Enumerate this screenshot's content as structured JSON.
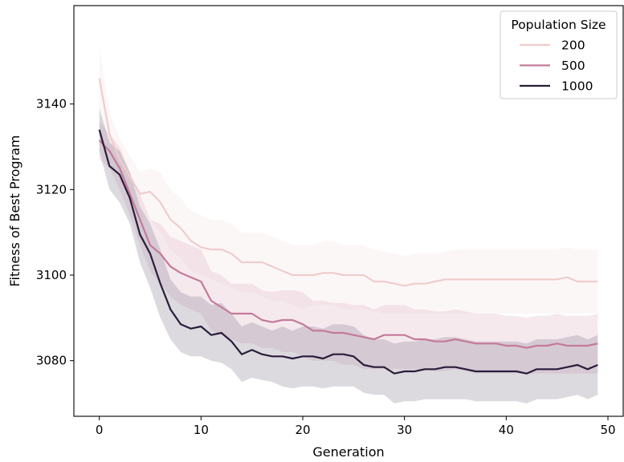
{
  "chart_data": {
    "type": "line",
    "xlabel": "Generation",
    "ylabel": "Fitness of Best Program",
    "xlim": [
      -2.5,
      51.5
    ],
    "ylim": [
      3067,
      3163
    ],
    "xticks": [
      0,
      10,
      20,
      30,
      40,
      50
    ],
    "yticks": [
      3080,
      3100,
      3120,
      3140
    ],
    "grid": false,
    "legend": {
      "title": "Population Size",
      "placement": "top-right"
    },
    "series": [
      {
        "name": "200",
        "color": "#f0cccc",
        "band_color": "#f5dede",
        "band_opacity": 0.25,
        "x": [
          0,
          1,
          2,
          3,
          4,
          5,
          6,
          7,
          8,
          9,
          10,
          11,
          12,
          13,
          14,
          15,
          16,
          17,
          18,
          19,
          20,
          21,
          22,
          23,
          24,
          25,
          26,
          27,
          28,
          29,
          30,
          31,
          32,
          33,
          34,
          35,
          36,
          37,
          38,
          39,
          40,
          41,
          42,
          43,
          44,
          45,
          46,
          47,
          48,
          49
        ],
        "values": [
          3146,
          3133,
          3127,
          3123,
          3119,
          3119.5,
          3117,
          3113,
          3111,
          3108,
          3106.5,
          3106,
          3106,
          3105,
          3103,
          3103,
          3103,
          3102,
          3101,
          3100,
          3100,
          3100,
          3100.5,
          3100.5,
          3100,
          3100,
          3100,
          3098.5,
          3098.5,
          3098,
          3097.5,
          3098,
          3098,
          3098.5,
          3099,
          3099,
          3099,
          3099,
          3099,
          3099,
          3099,
          3099,
          3099,
          3099,
          3099,
          3099,
          3099.5,
          3098.5,
          3098.5,
          3098.5
        ],
        "lower": [
          3138,
          3127,
          3122,
          3118,
          3114,
          3113,
          3110,
          3106,
          3104,
          3101,
          3100,
          3099,
          3098,
          3097,
          3096,
          3096,
          3095,
          3094,
          3094,
          3093,
          3092,
          3093,
          3093,
          3093,
          3092,
          3092,
          3092,
          3091.5,
          3091,
          3091,
          3091,
          3091,
          3091,
          3091,
          3091,
          3091,
          3091,
          3091,
          3091,
          3091,
          3091,
          3091,
          3091,
          3091,
          3091,
          3091,
          3091,
          3091,
          3091,
          3091
        ],
        "upper": [
          3153,
          3138,
          3132,
          3128,
          3124,
          3125,
          3124,
          3120,
          3118,
          3115,
          3114,
          3113,
          3113,
          3112,
          3110,
          3110,
          3110,
          3109,
          3108,
          3107,
          3107,
          3107,
          3108,
          3108,
          3107,
          3107,
          3107,
          3106,
          3105.5,
          3105,
          3104.5,
          3105,
          3105,
          3105,
          3105.5,
          3106,
          3106,
          3106,
          3106,
          3106,
          3106,
          3106,
          3106,
          3106,
          3106,
          3106,
          3106.5,
          3106,
          3106,
          3106
        ]
      },
      {
        "name": "500",
        "color": "#c47a99",
        "band_color": "#d8a7ba",
        "band_opacity": 0.25,
        "x": [
          0,
          1,
          2,
          3,
          4,
          5,
          6,
          7,
          8,
          9,
          10,
          11,
          12,
          13,
          14,
          15,
          16,
          17,
          18,
          19,
          20,
          21,
          22,
          23,
          24,
          25,
          26,
          27,
          28,
          29,
          30,
          31,
          32,
          33,
          34,
          35,
          36,
          37,
          38,
          39,
          40,
          41,
          42,
          43,
          44,
          45,
          46,
          47,
          48,
          49
        ],
        "values": [
          3131.5,
          3129,
          3125,
          3119,
          3113,
          3107,
          3105,
          3102,
          3100.5,
          3099.5,
          3098.5,
          3094,
          3092.5,
          3091,
          3091,
          3091,
          3089.5,
          3089,
          3089.5,
          3089.5,
          3088.5,
          3087,
          3087,
          3086.5,
          3086.5,
          3086,
          3085.5,
          3085,
          3086,
          3086,
          3086,
          3085,
          3085,
          3084.5,
          3084.5,
          3085,
          3084.5,
          3084,
          3084,
          3084,
          3083.5,
          3083.5,
          3083,
          3083.5,
          3083.5,
          3084,
          3083.5,
          3083.5,
          3083.5,
          3084
        ],
        "lower": [
          3127,
          3125,
          3120,
          3114,
          3107,
          3101,
          3098,
          3095,
          3093,
          3092,
          3091,
          3087,
          3086,
          3085,
          3084,
          3084,
          3083,
          3083,
          3082,
          3082,
          3081,
          3080,
          3080,
          3080,
          3079,
          3079,
          3078,
          3078,
          3078,
          3078,
          3078,
          3078,
          3078,
          3077.5,
          3077.5,
          3078,
          3077.5,
          3077,
          3077,
          3077,
          3077,
          3077,
          3077,
          3077,
          3077,
          3077,
          3077,
          3077,
          3077,
          3077
        ],
        "upper": [
          3136,
          3133,
          3130,
          3124,
          3119,
          3113,
          3112,
          3109,
          3108,
          3107,
          3106,
          3101,
          3100,
          3098,
          3098,
          3098,
          3096.5,
          3096,
          3096.5,
          3096.5,
          3096,
          3094,
          3094,
          3093.5,
          3093.5,
          3093,
          3093,
          3092,
          3093,
          3093,
          3093,
          3092,
          3092,
          3091.5,
          3091.5,
          3092,
          3091.5,
          3091,
          3091,
          3091,
          3090.5,
          3090.5,
          3090,
          3090.5,
          3090.5,
          3091,
          3090.5,
          3090.5,
          3090.5,
          3091
        ]
      },
      {
        "name": "1000",
        "color": "#2a1c3a",
        "band_color": "#8a8595",
        "band_opacity": 0.3,
        "x": [
          0,
          1,
          2,
          3,
          4,
          5,
          6,
          7,
          8,
          9,
          10,
          11,
          12,
          13,
          14,
          15,
          16,
          17,
          18,
          19,
          20,
          21,
          22,
          23,
          24,
          25,
          26,
          27,
          28,
          29,
          30,
          31,
          32,
          33,
          34,
          35,
          36,
          37,
          38,
          39,
          40,
          41,
          42,
          43,
          44,
          45,
          46,
          47,
          48,
          49
        ],
        "values": [
          3134,
          3125.5,
          3123.5,
          3118,
          3109.5,
          3105,
          3098,
          3092,
          3088.5,
          3087.5,
          3088,
          3086,
          3086.5,
          3084.5,
          3081.5,
          3082.5,
          3081.5,
          3081,
          3081,
          3080.5,
          3081,
          3081,
          3080.5,
          3081.5,
          3081.5,
          3081,
          3079,
          3078.5,
          3078.5,
          3077,
          3077.5,
          3077.5,
          3078,
          3078,
          3078.5,
          3078.5,
          3078,
          3077.5,
          3077.5,
          3077.5,
          3077.5,
          3077.5,
          3077,
          3078,
          3078,
          3078,
          3078.5,
          3079,
          3078,
          3079
        ],
        "lower": [
          3129,
          3120,
          3117,
          3112,
          3103,
          3097,
          3090,
          3085,
          3082,
          3081,
          3081,
          3080,
          3079.5,
          3078,
          3075,
          3076,
          3075.5,
          3075,
          3074,
          3073.5,
          3074,
          3074,
          3073.5,
          3074,
          3074,
          3074,
          3072.5,
          3072,
          3072,
          3070,
          3070.5,
          3070.5,
          3071,
          3071,
          3071,
          3071,
          3071,
          3070.5,
          3070.5,
          3070.5,
          3070.5,
          3070.5,
          3070,
          3071,
          3071,
          3071,
          3071.5,
          3072,
          3071,
          3072
        ],
        "upper": [
          3139,
          3131,
          3129,
          3124,
          3116,
          3112,
          3106,
          3099,
          3096,
          3095,
          3095,
          3093,
          3093.5,
          3091,
          3088,
          3089,
          3088,
          3087,
          3088,
          3087,
          3088,
          3088,
          3087.5,
          3088.5,
          3088.5,
          3088,
          3086,
          3085,
          3085,
          3084,
          3084.5,
          3084.5,
          3085,
          3085,
          3085.5,
          3085.5,
          3085,
          3084.5,
          3084.5,
          3084.5,
          3084.5,
          3084.5,
          3084,
          3085,
          3085,
          3085,
          3085.5,
          3086,
          3085,
          3086
        ]
      }
    ]
  }
}
